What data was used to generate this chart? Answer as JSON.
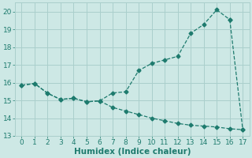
{
  "xlabel": "Humidex (Indice chaleur)",
  "background_color": "#cde8e5",
  "grid_color": "#aacfcc",
  "line_color": "#1e7b6e",
  "xlim": [
    -0.5,
    17.5
  ],
  "ylim": [
    13,
    20.5
  ],
  "xticks": [
    0,
    1,
    2,
    3,
    4,
    5,
    6,
    7,
    8,
    9,
    10,
    11,
    12,
    13,
    14,
    15,
    16,
    17
  ],
  "yticks": [
    13,
    14,
    15,
    16,
    17,
    18,
    19,
    20
  ],
  "upper_x": [
    0,
    1,
    2,
    3,
    4,
    5,
    6,
    7,
    8,
    9,
    10,
    11,
    12,
    13,
    14,
    15,
    16
  ],
  "upper_y": [
    15.85,
    15.95,
    15.4,
    15.05,
    15.12,
    14.92,
    14.97,
    15.42,
    15.48,
    16.68,
    17.08,
    17.28,
    17.48,
    18.78,
    19.28,
    20.1,
    19.55
  ],
  "lower_x": [
    0,
    1,
    2,
    3,
    4,
    5,
    6,
    7,
    8,
    9,
    10,
    11,
    12,
    13,
    14,
    15,
    16,
    17
  ],
  "lower_y": [
    15.85,
    15.95,
    15.4,
    15.05,
    15.12,
    14.92,
    14.97,
    14.6,
    14.4,
    14.2,
    14.0,
    13.85,
    13.7,
    13.6,
    13.55,
    13.5,
    13.4,
    13.35
  ],
  "font_color": "#1e7b6e",
  "tick_fontsize": 6.5,
  "label_fontsize": 7.5
}
